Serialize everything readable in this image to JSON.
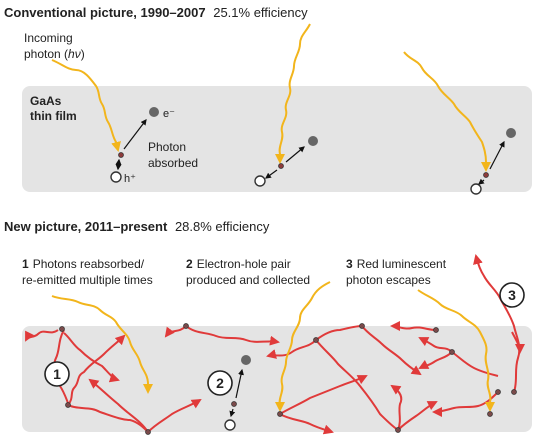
{
  "top": {
    "title": "Conventional picture, 1990–2007",
    "efficiency": "25.1% efficiency",
    "incoming_photon_line1": "Incoming",
    "incoming_photon_line2_a": "photon (",
    "incoming_photon_line2_hv": "hν",
    "incoming_photon_line2_b": ")",
    "film_label_line1": "GaAs",
    "film_label_line2": "thin film",
    "electron_label": "e⁻",
    "hole_label": "h⁺",
    "photon_absorbed_line1": "Photon",
    "photon_absorbed_line2": "absorbed"
  },
  "bottom": {
    "title": "New picture, 2011–present",
    "efficiency": "28.8% efficiency",
    "step1_num": "1",
    "step1_line1": "Photons reabsorbed/",
    "step1_line2": "re-emitted multiple times",
    "step2_num": "2",
    "step2_line1": "Electron-hole pair",
    "step2_line2": "produced and collected",
    "step3_num": "3",
    "step3_line1": "Red luminescent",
    "step3_line2": "photon escapes",
    "badge1": "1",
    "badge2": "2",
    "badge3": "3"
  },
  "colors": {
    "film": "#e4e4e4",
    "incoming_photon": "#f2b51c",
    "luminescent_photon": "#e03a3a",
    "electron": "#666666",
    "hole": "#ffffff",
    "arrow": "#111111"
  }
}
